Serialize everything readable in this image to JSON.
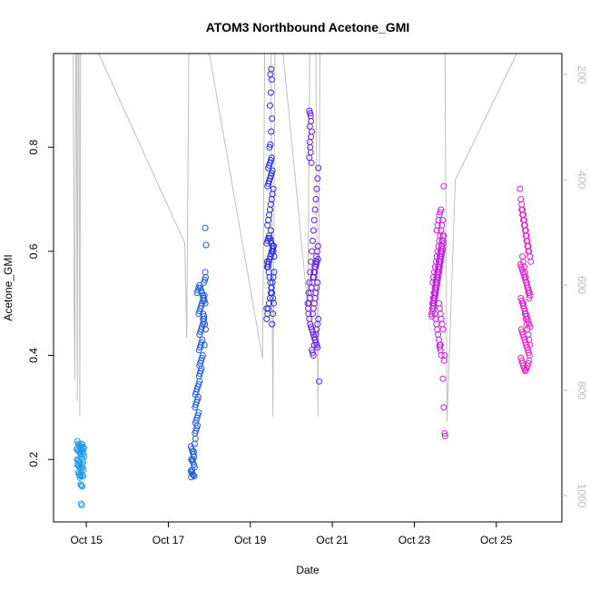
{
  "chart_data": {
    "type": "scatter",
    "title": "ATOM3 Northbound Acetone_GMI",
    "xlabel": "Date",
    "ylabel": "Acetone_GMI",
    "x_unit": "day-of-October",
    "xlim": [
      14.2,
      26.6
    ],
    "ylim": [
      0.08,
      0.98
    ],
    "x_ticks": [
      {
        "value": 15,
        "label": "Oct 15"
      },
      {
        "value": 17,
        "label": "Oct 17"
      },
      {
        "value": 19,
        "label": "Oct 19"
      },
      {
        "value": 21,
        "label": "Oct 21"
      },
      {
        "value": 23,
        "label": "Oct 23"
      },
      {
        "value": 25,
        "label": "Oct 25"
      }
    ],
    "y_ticks": [
      0.2,
      0.4,
      0.6,
      0.8
    ],
    "secondary_axis": {
      "side": "right",
      "ylim": [
        1050,
        160
      ],
      "ticks": [
        200,
        400,
        600,
        800,
        1000
      ],
      "color": "#bbbbbb"
    },
    "grid": false,
    "series": [
      {
        "color": "#1E9BE6",
        "marker": "open-circle",
        "x": [
          14.78,
          14.8,
          14.82,
          14.84,
          14.86,
          14.88,
          14.9,
          14.92,
          14.94,
          14.76,
          14.79,
          14.81,
          14.83,
          14.85,
          14.87,
          14.89,
          14.91,
          14.93,
          14.95,
          14.77,
          14.8,
          14.82,
          14.84,
          14.86,
          14.88,
          14.9,
          14.92,
          14.78,
          14.81,
          14.83,
          14.85,
          14.87,
          14.89,
          14.91,
          14.93,
          14.8,
          14.82,
          14.84,
          14.86,
          14.88,
          14.9,
          14.92,
          14.84,
          14.86,
          14.88,
          14.9,
          14.87,
          14.89
        ],
        "y": [
          0.235,
          0.23,
          0.228,
          0.226,
          0.225,
          0.23,
          0.228,
          0.224,
          0.222,
          0.22,
          0.218,
          0.216,
          0.214,
          0.212,
          0.22,
          0.218,
          0.215,
          0.21,
          0.205,
          0.2,
          0.198,
          0.196,
          0.194,
          0.21,
          0.205,
          0.2,
          0.195,
          0.19,
          0.188,
          0.186,
          0.184,
          0.182,
          0.19,
          0.185,
          0.18,
          0.175,
          0.172,
          0.17,
          0.168,
          0.175,
          0.17,
          0.168,
          0.165,
          0.152,
          0.15,
          0.148,
          0.115,
          0.112
        ]
      },
      {
        "color": "#1F5BE0",
        "marker": "open-circle",
        "x": [
          17.55,
          17.57,
          17.59,
          17.61,
          17.63,
          17.56,
          17.58,
          17.6,
          17.62,
          17.64,
          17.55,
          17.57,
          17.59,
          17.61,
          17.63,
          17.56,
          17.58,
          17.6,
          17.62,
          17.64,
          17.66,
          17.65,
          17.67,
          17.69,
          17.71,
          17.66,
          17.68,
          17.7,
          17.72,
          17.74,
          17.65,
          17.67,
          17.69,
          17.71,
          17.73,
          17.66,
          17.68,
          17.7,
          17.72,
          17.74,
          17.76,
          17.75,
          17.77,
          17.79,
          17.81,
          17.76,
          17.78,
          17.8,
          17.82,
          17.84,
          17.75,
          17.77,
          17.79,
          17.81,
          17.83,
          17.76,
          17.78,
          17.8,
          17.82,
          17.84,
          17.86,
          17.85,
          17.87,
          17.74,
          17.76,
          17.78,
          17.8,
          17.82,
          17.84,
          17.86,
          17.88,
          17.7,
          17.72,
          17.74,
          17.76,
          17.78,
          17.8,
          17.82,
          17.84,
          17.86,
          17.88,
          17.9,
          17.87,
          17.89,
          17.91,
          17.85,
          17.87,
          17.89,
          17.91,
          17.9,
          17.92,
          17.88,
          17.9
        ],
        "y": [
          0.225,
          0.22,
          0.215,
          0.21,
          0.205,
          0.2,
          0.198,
          0.195,
          0.19,
          0.185,
          0.178,
          0.175,
          0.172,
          0.17,
          0.168,
          0.166,
          0.18,
          0.2,
          0.215,
          0.23,
          0.24,
          0.25,
          0.255,
          0.26,
          0.265,
          0.27,
          0.275,
          0.28,
          0.285,
          0.29,
          0.3,
          0.305,
          0.31,
          0.315,
          0.32,
          0.325,
          0.33,
          0.335,
          0.34,
          0.345,
          0.35,
          0.36,
          0.365,
          0.37,
          0.375,
          0.38,
          0.385,
          0.39,
          0.395,
          0.4,
          0.41,
          0.415,
          0.42,
          0.425,
          0.43,
          0.44,
          0.445,
          0.45,
          0.455,
          0.46,
          0.465,
          0.47,
          0.475,
          0.48,
          0.485,
          0.49,
          0.495,
          0.5,
          0.505,
          0.51,
          0.515,
          0.52,
          0.525,
          0.53,
          0.535,
          0.53,
          0.525,
          0.52,
          0.515,
          0.51,
          0.505,
          0.5,
          0.54,
          0.545,
          0.55,
          0.48,
          0.47,
          0.46,
          0.45,
          0.56,
          0.612,
          0.42,
          0.645
        ]
      },
      {
        "color": "#2A2AE6",
        "marker": "open-circle",
        "x": [
          19.4,
          19.42,
          19.44,
          19.46,
          19.48,
          19.5,
          19.52,
          19.54,
          19.56,
          19.58,
          19.41,
          19.43,
          19.45,
          19.47,
          19.49,
          19.51,
          19.53,
          19.55,
          19.57,
          19.4,
          19.42,
          19.44,
          19.46,
          19.48,
          19.5,
          19.52,
          19.54,
          19.56,
          19.58,
          19.41,
          19.43,
          19.45,
          19.47,
          19.49,
          19.51,
          19.53,
          19.55,
          19.57,
          19.4,
          19.42,
          19.44,
          19.46,
          19.48,
          19.5,
          19.52,
          19.54,
          19.56,
          19.42,
          19.44,
          19.46,
          19.48,
          19.5,
          19.52,
          19.54,
          19.44,
          19.46,
          19.48,
          19.5,
          19.52,
          19.47,
          19.49,
          19.51,
          19.53,
          19.48,
          19.5,
          19.52,
          19.49,
          19.51,
          19.53,
          19.55,
          19.5,
          19.52
        ],
        "y": [
          0.47,
          0.48,
          0.49,
          0.5,
          0.51,
          0.52,
          0.53,
          0.54,
          0.55,
          0.56,
          0.57,
          0.575,
          0.58,
          0.585,
          0.59,
          0.595,
          0.6,
          0.605,
          0.61,
          0.615,
          0.62,
          0.625,
          0.63,
          0.625,
          0.62,
          0.615,
          0.61,
          0.6,
          0.59,
          0.58,
          0.57,
          0.56,
          0.55,
          0.54,
          0.53,
          0.52,
          0.51,
          0.5,
          0.49,
          0.65,
          0.66,
          0.67,
          0.68,
          0.69,
          0.7,
          0.71,
          0.72,
          0.725,
          0.73,
          0.735,
          0.74,
          0.745,
          0.75,
          0.755,
          0.76,
          0.765,
          0.77,
          0.775,
          0.78,
          0.8,
          0.805,
          0.83,
          0.855,
          0.88,
          0.905,
          0.93,
          0.94,
          0.95,
          0.46,
          0.48,
          0.64,
          0.6
        ]
      },
      {
        "color": "#6A1FE8",
        "marker": "open-circle",
        "x": [
          20.4,
          20.42,
          20.44,
          20.46,
          20.48,
          20.5,
          20.52,
          20.54,
          20.56,
          20.58,
          20.6,
          20.62,
          20.64,
          20.66,
          20.41,
          20.43,
          20.45,
          20.47,
          20.49,
          20.51,
          20.53,
          20.55,
          20.57,
          20.59,
          20.61,
          20.63,
          20.65,
          20.42,
          20.44,
          20.46,
          20.48,
          20.5,
          20.52,
          20.54,
          20.56,
          20.58,
          20.6,
          20.62,
          20.64,
          20.5,
          20.52,
          20.54,
          20.56,
          20.58,
          20.6,
          20.62,
          20.64,
          20.66,
          20.52,
          20.54,
          20.56,
          20.58,
          20.6,
          20.62,
          20.64,
          20.55,
          20.57,
          20.59,
          20.61,
          20.63,
          20.65,
          20.44,
          20.46,
          20.48,
          20.45,
          20.47,
          20.44,
          20.46,
          20.48,
          20.5,
          20.45,
          20.47,
          20.49,
          20.68
        ],
        "y": [
          0.5,
          0.52,
          0.54,
          0.56,
          0.58,
          0.6,
          0.62,
          0.64,
          0.66,
          0.68,
          0.7,
          0.72,
          0.74,
          0.76,
          0.49,
          0.5,
          0.51,
          0.52,
          0.53,
          0.54,
          0.55,
          0.56,
          0.57,
          0.58,
          0.59,
          0.6,
          0.61,
          0.48,
          0.47,
          0.46,
          0.455,
          0.45,
          0.445,
          0.44,
          0.435,
          0.43,
          0.425,
          0.42,
          0.415,
          0.41,
          0.405,
          0.4,
          0.42,
          0.43,
          0.44,
          0.45,
          0.46,
          0.47,
          0.48,
          0.49,
          0.5,
          0.51,
          0.52,
          0.53,
          0.54,
          0.55,
          0.56,
          0.57,
          0.575,
          0.58,
          0.585,
          0.78,
          0.8,
          0.82,
          0.84,
          0.86,
          0.87,
          0.865,
          0.85,
          0.83,
          0.81,
          0.79,
          0.77,
          0.35
        ]
      },
      {
        "color": "#C81EE0",
        "marker": "open-circle",
        "x": [
          23.42,
          23.44,
          23.46,
          23.48,
          23.5,
          23.52,
          23.54,
          23.56,
          23.58,
          23.6,
          23.62,
          23.64,
          23.66,
          23.68,
          23.7,
          23.72,
          23.43,
          23.45,
          23.47,
          23.49,
          23.51,
          23.53,
          23.55,
          23.57,
          23.59,
          23.61,
          23.63,
          23.65,
          23.67,
          23.69,
          23.71,
          23.44,
          23.46,
          23.48,
          23.5,
          23.52,
          23.54,
          23.56,
          23.58,
          23.6,
          23.62,
          23.64,
          23.66,
          23.68,
          23.7,
          23.45,
          23.47,
          23.49,
          23.51,
          23.53,
          23.55,
          23.57,
          23.59,
          23.61,
          23.63,
          23.65,
          23.67,
          23.69,
          23.46,
          23.48,
          23.5,
          23.52,
          23.54,
          23.56,
          23.58,
          23.6,
          23.62,
          23.64,
          23.66,
          23.68,
          23.5,
          23.52,
          23.54,
          23.56,
          23.58,
          23.6,
          23.62,
          23.64,
          23.66,
          23.55,
          23.57,
          23.59,
          23.61,
          23.63,
          23.65,
          23.6,
          23.62,
          23.64,
          23.66,
          23.68,
          23.7,
          23.72,
          23.62,
          23.64,
          23.7,
          23.72,
          23.74,
          23.75,
          23.73,
          23.74
        ],
        "y": [
          0.48,
          0.49,
          0.5,
          0.51,
          0.52,
          0.53,
          0.54,
          0.55,
          0.56,
          0.57,
          0.58,
          0.59,
          0.6,
          0.61,
          0.62,
          0.63,
          0.475,
          0.485,
          0.495,
          0.505,
          0.515,
          0.525,
          0.535,
          0.545,
          0.555,
          0.565,
          0.575,
          0.585,
          0.595,
          0.605,
          0.615,
          0.5,
          0.51,
          0.52,
          0.53,
          0.54,
          0.55,
          0.56,
          0.57,
          0.58,
          0.59,
          0.6,
          0.61,
          0.62,
          0.63,
          0.54,
          0.55,
          0.56,
          0.57,
          0.58,
          0.59,
          0.6,
          0.61,
          0.62,
          0.63,
          0.64,
          0.65,
          0.66,
          0.49,
          0.5,
          0.51,
          0.52,
          0.53,
          0.54,
          0.55,
          0.56,
          0.57,
          0.58,
          0.59,
          0.6,
          0.48,
          0.47,
          0.46,
          0.45,
          0.44,
          0.43,
          0.42,
          0.41,
          0.4,
          0.64,
          0.65,
          0.66,
          0.67,
          0.675,
          0.68,
          0.5,
          0.49,
          0.48,
          0.47,
          0.46,
          0.45,
          0.725,
          0.415,
          0.42,
          0.355,
          0.3,
          0.25,
          0.245,
          0.39,
          0.4
        ]
      },
      {
        "color": "#E81ED2",
        "marker": "open-circle",
        "x": [
          25.58,
          25.6,
          25.62,
          25.64,
          25.66,
          25.68,
          25.7,
          25.72,
          25.74,
          25.76,
          25.78,
          25.8,
          25.82,
          25.84,
          25.59,
          25.61,
          25.63,
          25.65,
          25.67,
          25.69,
          25.71,
          25.73,
          25.75,
          25.77,
          25.79,
          25.81,
          25.83,
          25.6,
          25.62,
          25.64,
          25.66,
          25.68,
          25.7,
          25.72,
          25.74,
          25.76,
          25.78,
          25.8,
          25.82,
          25.61,
          25.63,
          25.65,
          25.67,
          25.69,
          25.71,
          25.73,
          25.75,
          25.77,
          25.79,
          25.81,
          25.6,
          25.62,
          25.64,
          25.66,
          25.68,
          25.7,
          25.72,
          25.74,
          25.76,
          25.78,
          25.8,
          25.62,
          25.64,
          25.66,
          25.68,
          25.7,
          25.72,
          25.74,
          25.76,
          25.78,
          25.64,
          25.66,
          25.68,
          25.7,
          25.72,
          25.74,
          25.76,
          25.78,
          25.8,
          25.66,
          25.68,
          25.7,
          25.72,
          25.74,
          25.76,
          25.78,
          25.8,
          25.82
        ],
        "y": [
          0.72,
          0.7,
          0.69,
          0.68,
          0.67,
          0.66,
          0.65,
          0.64,
          0.63,
          0.62,
          0.61,
          0.6,
          0.59,
          0.58,
          0.575,
          0.57,
          0.565,
          0.56,
          0.555,
          0.55,
          0.545,
          0.54,
          0.535,
          0.53,
          0.525,
          0.52,
          0.515,
          0.51,
          0.505,
          0.5,
          0.495,
          0.49,
          0.485,
          0.48,
          0.475,
          0.47,
          0.465,
          0.46,
          0.455,
          0.45,
          0.445,
          0.44,
          0.435,
          0.43,
          0.425,
          0.42,
          0.415,
          0.41,
          0.405,
          0.4,
          0.395,
          0.39,
          0.385,
          0.38,
          0.375,
          0.37,
          0.372,
          0.376,
          0.38,
          0.385,
          0.39,
          0.68,
          0.67,
          0.66,
          0.65,
          0.64,
          0.63,
          0.62,
          0.61,
          0.6,
          0.59,
          0.58,
          0.57,
          0.56,
          0.55,
          0.54,
          0.53,
          0.52,
          0.51,
          0.5,
          0.49,
          0.48,
          0.47,
          0.46,
          0.45,
          0.44,
          0.43,
          0.42
        ]
      }
    ],
    "pressure_trace": {
      "color": "#c0c0c0",
      "axis": "secondary",
      "x": [
        14.68,
        14.7,
        14.72,
        14.74,
        14.76,
        14.78,
        14.8,
        14.82,
        14.84,
        14.86,
        14.88,
        14.9,
        14.92,
        14.94,
        14.96,
        14.98,
        15.0,
        15.3,
        17.4,
        17.45,
        17.5,
        17.55,
        17.6,
        17.65,
        17.7,
        17.75,
        17.8,
        17.85,
        17.9,
        18.0,
        19.3,
        19.35,
        19.4,
        19.45,
        19.5,
        19.55,
        19.6,
        19.65,
        19.7,
        19.8,
        20.4,
        20.45,
        20.5,
        20.55,
        20.6,
        20.65,
        20.7,
        21.5,
        23.4,
        23.45,
        23.5,
        23.55,
        23.6,
        23.65,
        23.7,
        23.75,
        23.8,
        24.0,
        25.5,
        25.55,
        25.6,
        25.65,
        25.7,
        25.75,
        25.8,
        25.85,
        25.9
      ],
      "y": [
        150,
        620,
        780,
        150,
        150,
        820,
        150,
        150,
        850,
        150,
        150,
        150,
        150,
        150,
        150,
        150,
        150,
        150,
        520,
        700,
        150,
        150,
        150,
        150,
        150,
        150,
        150,
        150,
        150,
        150,
        740,
        150,
        150,
        150,
        150,
        850,
        150,
        150,
        150,
        150,
        640,
        150,
        150,
        150,
        150,
        850,
        150,
        150,
        150,
        150,
        150,
        150,
        150,
        150,
        150,
        150,
        860,
        400,
        150,
        150,
        150,
        150,
        150,
        150,
        150,
        150,
        150
      ]
    }
  }
}
